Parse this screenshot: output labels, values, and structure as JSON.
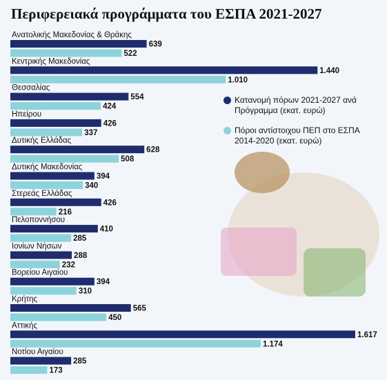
{
  "chart_data": {
    "type": "hbar",
    "title": "Περιφερειακά προγράμματα του ΕΣΠΑ 2021-2027",
    "categories": [
      "Ανατολικής Μακεδονίας & Θράκης",
      "Κεντρικής Μακεδονίας",
      "Θεσσαλίας",
      "Ηπείρου",
      "Δυτικής Ελλάδας",
      "Δυτικής Μακεδονίας",
      "Στερεάς Ελλάδας",
      "Πελοποννήσου",
      "Ιονίων Νήσων",
      "Βορείου Αιγαίου",
      "Κρήτης",
      "Αττικής",
      "Νοτίου Αιγαίου"
    ],
    "series": [
      {
        "name": "Κατανομή πόρων 2021-2027 ανά Πρόγραμμα (εκατ. ευρώ)",
        "color": "#1f2d6e",
        "values": [
          639,
          1440,
          554,
          426,
          628,
          394,
          426,
          410,
          288,
          394,
          565,
          1617,
          285
        ],
        "value_labels": [
          "639",
          "1.440",
          "554",
          "426",
          "628",
          "394",
          "426",
          "410",
          "288",
          "394",
          "565",
          "1.617",
          "285"
        ]
      },
      {
        "name": "Πόροι αντίστοιχου ΠΕΠ στο ΕΣΠΑ 2014-2020 (εκατ. ευρώ)",
        "color": "#8dd3dc",
        "values": [
          522,
          1010,
          424,
          337,
          508,
          340,
          216,
          285,
          232,
          310,
          450,
          1174,
          173
        ],
        "value_labels": [
          "522",
          "1.010",
          "424",
          "337",
          "508",
          "340",
          "216",
          "285",
          "232",
          "310",
          "450",
          "1.174",
          "173"
        ]
      }
    ]
  }
}
